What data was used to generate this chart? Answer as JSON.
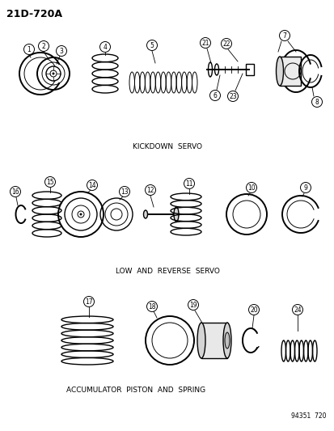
{
  "title": "21D-720A",
  "section1_label": "KICKDOWN  SERVO",
  "section2_label": "LOW  AND  REVERSE  SERVO",
  "section3_label": "ACCUMULATOR  PISTON  AND  SPRING",
  "ref_number": "94351  720",
  "bg_color": "#ffffff",
  "line_color": "#000000"
}
